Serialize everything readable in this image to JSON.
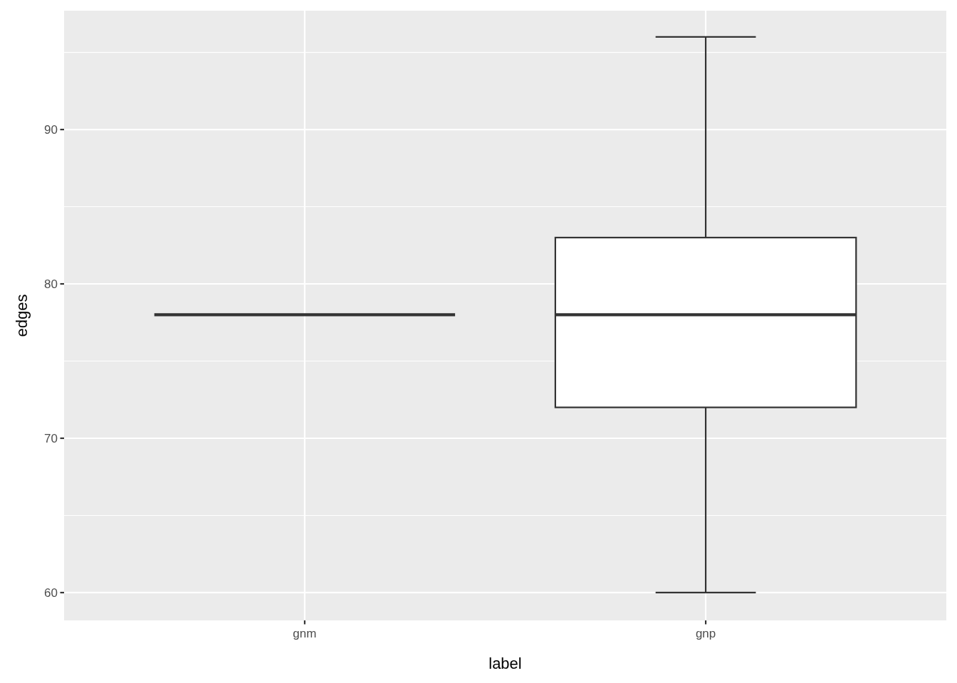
{
  "chart_data": {
    "type": "box",
    "xlabel": "label",
    "ylabel": "edges",
    "categories": [
      "gnm",
      "gnp"
    ],
    "boxes": [
      {
        "low": 78,
        "q1": 78,
        "median": 78,
        "q3": 78,
        "high": 78
      },
      {
        "low": 60,
        "q1": 72,
        "median": 78,
        "q3": 83,
        "high": 96
      }
    ],
    "ylim": [
      58.2,
      97.7
    ],
    "yticks": [
      60,
      70,
      80,
      90
    ],
    "grid": true
  }
}
